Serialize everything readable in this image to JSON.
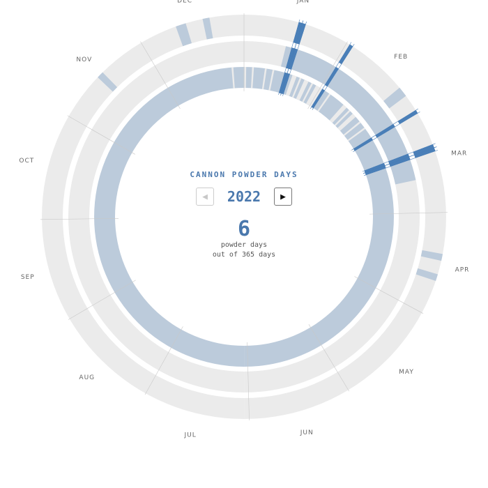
{
  "header": {
    "title": "CANNON POWDER DAYS",
    "year": "2022",
    "prev_icon": "triangle-left-icon",
    "next_icon": "triangle-right-icon",
    "prev_symbol": "◀",
    "next_symbol": "▶"
  },
  "summary": {
    "count": "6",
    "line1": "powder days",
    "line2": "out of 365 days"
  },
  "colors": {
    "empty": "#ebebeb",
    "light": "#bccbdb",
    "powder": "#4a7fb8",
    "accent": "#4a78ad"
  },
  "chart_data": {
    "type": "radial-calendar",
    "year": 2022,
    "days_in_year": 365,
    "start": "top, clockwise from Jan 1",
    "month_labels": [
      "JAN",
      "FEB",
      "MAR",
      "APR",
      "MAY",
      "JUN",
      "JUL",
      "AUG",
      "SEP",
      "OCT",
      "NOV",
      "DEC"
    ],
    "rings": [
      {
        "position": "outer",
        "default_state": "empty",
        "light_ranges": [
          [
            "02-21",
            "02-23"
          ],
          [
            "04-13",
            "04-14"
          ],
          [
            "04-19",
            "04-20"
          ],
          [
            "11-15",
            "11-16"
          ],
          [
            "12-12",
            "12-14"
          ],
          [
            "12-20",
            "12-21"
          ]
        ]
      },
      {
        "position": "middle",
        "default_state": "empty",
        "light_ranges": [
          [
            "01-15",
            "03-20"
          ]
        ]
      },
      {
        "position": "inner",
        "default_state": "light",
        "empty_ranges": [
          [
            "01-01",
            "01-01"
          ],
          [
            "01-04",
            "01-04"
          ],
          [
            "01-09",
            "01-09"
          ],
          [
            "01-12",
            "01-12"
          ],
          [
            "01-20",
            "01-21"
          ],
          [
            "01-23",
            "01-23"
          ],
          [
            "01-25",
            "01-26"
          ],
          [
            "01-28",
            "01-28"
          ],
          [
            "01-30",
            "02-01"
          ],
          [
            "02-05",
            "02-05"
          ],
          [
            "02-12",
            "02-13"
          ],
          [
            "02-15",
            "02-15"
          ],
          [
            "02-17",
            "02-18"
          ],
          [
            "02-21",
            "02-21"
          ],
          [
            "02-24",
            "02-24"
          ],
          [
            "12-27",
            "12-27"
          ]
        ]
      }
    ],
    "powder_days": [
      "01-17",
      "01-18",
      "02-02",
      "03-01",
      "03-12",
      "03-13"
    ]
  }
}
